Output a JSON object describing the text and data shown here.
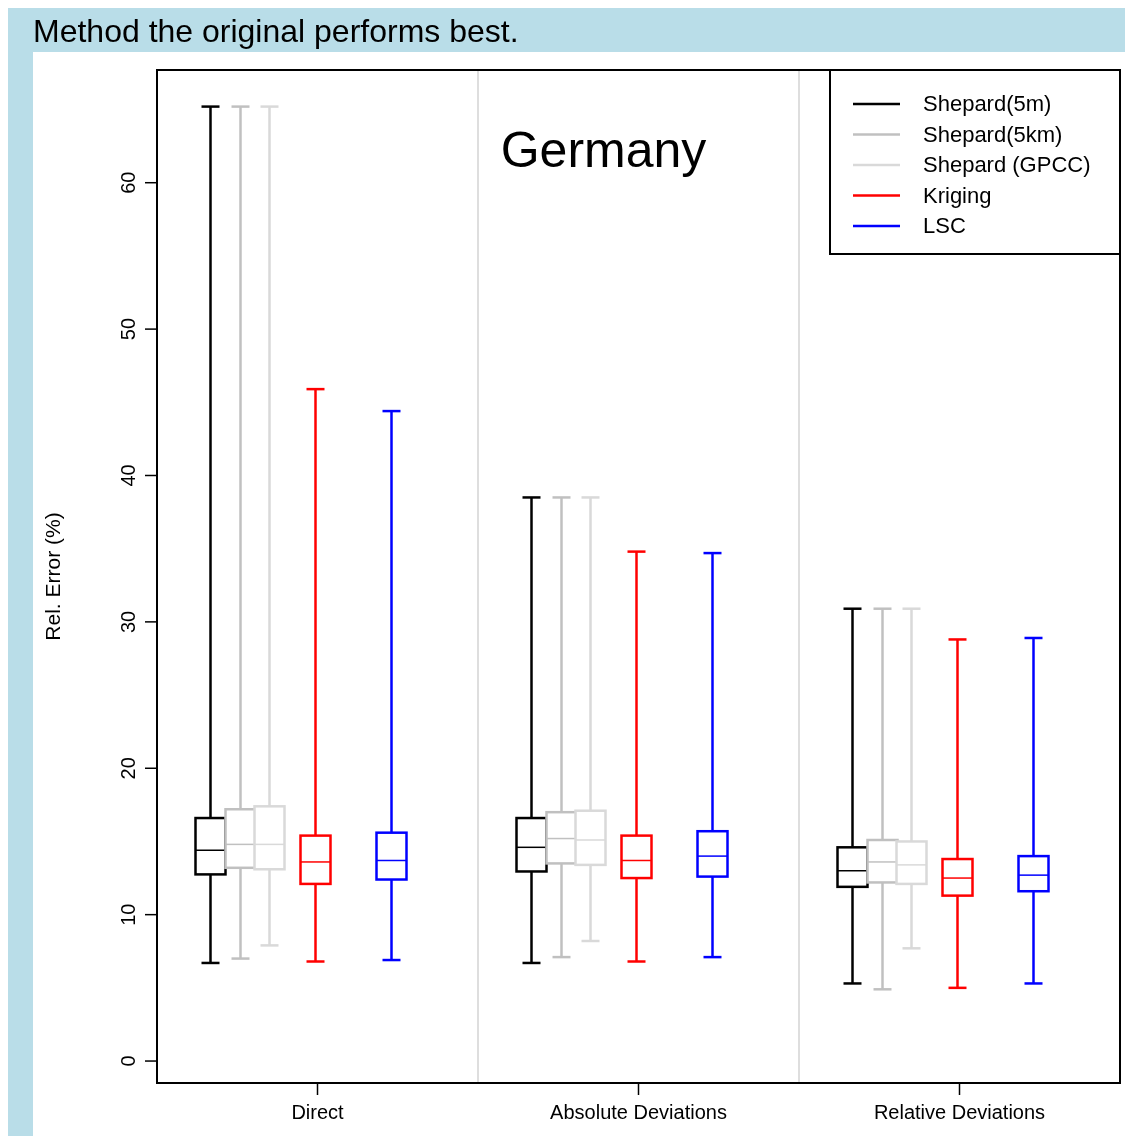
{
  "chart_data": {
    "type": "box",
    "title": "Method the original performs best.",
    "ylabel": "Rel. Error (%)",
    "annotations": [
      "Germany"
    ],
    "categories": [
      "Direct",
      "Absolute Deviations",
      "Relative Deviations"
    ],
    "ylim": [
      -1.5,
      67.7
    ],
    "yticks": [
      0,
      10,
      20,
      30,
      40,
      50,
      60
    ],
    "grid": false,
    "legend": "top right",
    "series": [
      {
        "name": "Shepard(5m)",
        "color": "#000000",
        "boxes": [
          {
            "low": 6.7,
            "q1": 12.75,
            "median": 14.4,
            "q3": 16.6,
            "high": 65.2
          },
          {
            "low": 6.7,
            "q1": 12.95,
            "median": 14.6,
            "q3": 16.6,
            "high": 38.5
          },
          {
            "low": 5.3,
            "q1": 11.9,
            "median": 13.0,
            "q3": 14.6,
            "high": 30.9
          }
        ]
      },
      {
        "name": "Shepard(5km)",
        "color": "#c0c0c0",
        "boxes": [
          {
            "low": 7.0,
            "q1": 13.2,
            "median": 14.8,
            "q3": 17.2,
            "high": 65.2
          },
          {
            "low": 7.1,
            "q1": 13.5,
            "median": 15.2,
            "q3": 17.0,
            "high": 38.5
          },
          {
            "low": 4.9,
            "q1": 12.2,
            "median": 13.6,
            "q3": 15.1,
            "high": 30.9
          }
        ]
      },
      {
        "name": "Shepard (GPCC)",
        "color": "#d9d9d9",
        "boxes": [
          {
            "low": 7.9,
            "q1": 13.1,
            "median": 14.8,
            "q3": 17.4,
            "high": 65.2
          },
          {
            "low": 8.2,
            "q1": 13.4,
            "median": 15.1,
            "q3": 17.1,
            "high": 38.5
          },
          {
            "low": 7.7,
            "q1": 12.1,
            "median": 13.4,
            "q3": 15.0,
            "high": 30.9
          }
        ]
      },
      {
        "name": "Kriging",
        "color": "#ff0000",
        "boxes": [
          {
            "low": 6.8,
            "q1": 12.1,
            "median": 13.6,
            "q3": 15.4,
            "high": 45.9
          },
          {
            "low": 6.8,
            "q1": 12.5,
            "median": 13.7,
            "q3": 15.4,
            "high": 34.8
          },
          {
            "low": 5.0,
            "q1": 11.3,
            "median": 12.5,
            "q3": 13.8,
            "high": 28.8
          }
        ]
      },
      {
        "name": "LSC",
        "color": "#0000ff",
        "boxes": [
          {
            "low": 6.9,
            "q1": 12.4,
            "median": 13.7,
            "q3": 15.6,
            "high": 44.4
          },
          {
            "low": 7.1,
            "q1": 12.6,
            "median": 14.0,
            "q3": 15.7,
            "high": 34.7
          },
          {
            "low": 5.3,
            "q1": 11.6,
            "median": 12.7,
            "q3": 14.0,
            "high": 28.9
          }
        ]
      }
    ]
  }
}
